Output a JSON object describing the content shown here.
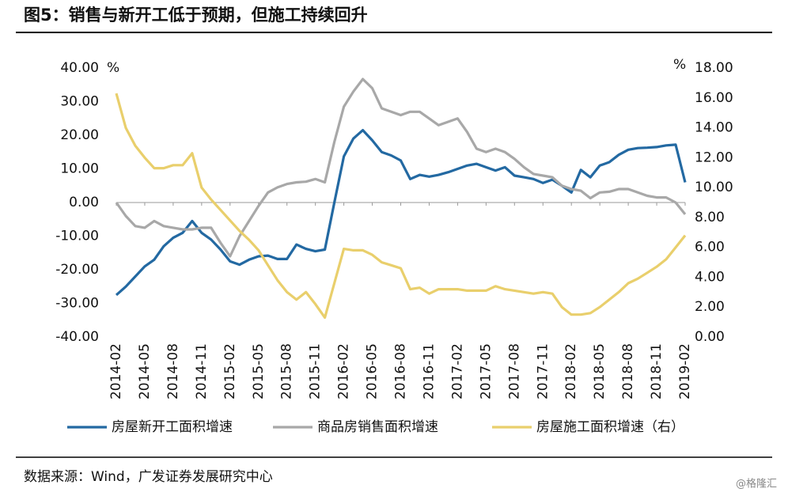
{
  "chart_data": {
    "type": "line",
    "title": "图5：销售与新开工低于预期，但施工持续回升",
    "source": "数据来源：Wind，广发证券发展研究中心",
    "watermark": "@格隆汇",
    "y_unit": "%",
    "y2_unit": "%",
    "categories": [
      "2014-02",
      null,
      null,
      "2014-05",
      null,
      null,
      "2014-08",
      null,
      null,
      "2014-11",
      null,
      null,
      "2015-02",
      null,
      null,
      "2015-05",
      null,
      null,
      "2015-08",
      null,
      null,
      "2015-11",
      null,
      null,
      "2016-02",
      null,
      null,
      "2016-05",
      null,
      null,
      "2016-08",
      null,
      null,
      "2016-11",
      null,
      null,
      "2017-02",
      null,
      null,
      "2017-05",
      null,
      null,
      "2017-08",
      null,
      null,
      "2017-11",
      null,
      null,
      "2018-02",
      null,
      null,
      "2018-05",
      null,
      null,
      "2018-08",
      null,
      null,
      "2018-11",
      null,
      null,
      "2019-02"
    ],
    "series": [
      {
        "name": "房屋新开工面积增速",
        "color": "#2369a2",
        "values": [
          -27.5,
          -25,
          -22,
          -19,
          -17,
          -13,
          -10.5,
          -9,
          -5.5,
          -9,
          -11,
          -14,
          -17.5,
          -18.5,
          -17,
          -16,
          -15.8,
          -16.8,
          -16.8,
          -12.5,
          -13.8,
          -14.5,
          -14,
          0,
          13.7,
          19,
          21.5,
          18.5,
          15,
          14,
          12.5,
          7,
          8.2,
          7.7,
          8.2,
          9,
          10,
          11,
          11.5,
          10.5,
          9.5,
          10.5,
          8,
          7.5,
          7,
          5.8,
          6.8,
          5,
          3,
          9.7,
          7.5,
          11,
          12,
          14.2,
          15.7,
          16.2,
          16.3,
          16.5,
          17,
          17.2,
          6
        ]
      },
      {
        "name": "商品房销售面积增速",
        "color": "#a8a8a8",
        "values": [
          0,
          -4,
          -7,
          -7.5,
          -5.5,
          -7,
          -7.5,
          -8,
          -8,
          -7.5,
          -7.5,
          -12,
          -16,
          -10,
          -5.5,
          -1,
          3,
          4.5,
          5.5,
          6,
          6.2,
          7,
          6,
          18,
          28.5,
          33,
          36.7,
          34,
          28,
          27,
          26,
          27,
          27,
          25,
          23,
          24,
          25,
          21,
          16,
          15,
          16,
          15,
          13,
          10.5,
          8.5,
          8,
          7.5,
          5,
          4,
          3.5,
          1.3,
          3,
          3.2,
          4,
          4,
          3,
          2,
          1.5,
          1.5,
          0,
          -3.5
        ]
      },
      {
        "name": "房屋施工面积增速（右）",
        "color": "#e9cf6c",
        "axis": "y2",
        "values": [
          16.3,
          14,
          12.8,
          12,
          11.3,
          11.3,
          11.5,
          11.5,
          12.3,
          10,
          9.2,
          8.5,
          7.8,
          7.1,
          6.5,
          5.8,
          4.8,
          3.8,
          3.0,
          2.5,
          3.0,
          2.2,
          1.3,
          3.6,
          5.9,
          5.8,
          5.8,
          5.5,
          5.0,
          4.8,
          4.6,
          3.2,
          3.3,
          2.9,
          3.2,
          3.2,
          3.2,
          3.1,
          3.1,
          3.1,
          3.4,
          3.2,
          3.1,
          3.0,
          2.9,
          3.0,
          2.9,
          2.0,
          1.5,
          1.5,
          1.6,
          2.0,
          2.5,
          3.0,
          3.6,
          3.9,
          4.3,
          4.7,
          5.2,
          6.0,
          6.8
        ]
      }
    ],
    "ylim": [
      -40,
      40
    ],
    "yticks": [
      {
        "value": -40,
        "label": "-40.00"
      },
      {
        "value": -30,
        "label": "-30.00"
      },
      {
        "value": -20,
        "label": "-20.00"
      },
      {
        "value": -10,
        "label": "-10.00"
      },
      {
        "value": 0,
        "label": "0.00"
      },
      {
        "value": 10,
        "label": "10.00"
      },
      {
        "value": 20,
        "label": "20.00"
      },
      {
        "value": 30,
        "label": "30.00"
      },
      {
        "value": 40,
        "label": "40.00"
      }
    ],
    "y2lim": [
      0,
      18
    ],
    "y2ticks": [
      {
        "value": 0,
        "label": "0.00"
      },
      {
        "value": 2,
        "label": "2.00"
      },
      {
        "value": 4,
        "label": "4.00"
      },
      {
        "value": 6,
        "label": "6.00"
      },
      {
        "value": 8,
        "label": "8.00"
      },
      {
        "value": 10,
        "label": "10.00"
      },
      {
        "value": 12,
        "label": "12.00"
      },
      {
        "value": 14,
        "label": "14.00"
      },
      {
        "value": 16,
        "label": "16.00"
      },
      {
        "value": 18,
        "label": "18.00"
      }
    ],
    "grid": false,
    "legend": "bottom"
  }
}
